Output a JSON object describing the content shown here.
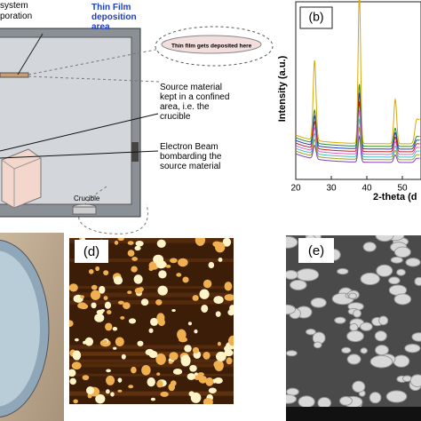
{
  "schematic": {
    "system_label": [
      "system",
      "poration"
    ],
    "deposition_label": [
      "Thin Film",
      "deposition",
      "area"
    ],
    "substrate_label": "Thin film gets deposited here",
    "source_label": [
      "Source material",
      "kept in a confined",
      "area, i.e. the",
      "crucible"
    ],
    "beam_label": [
      "Electron Beam",
      "bombarding the",
      "source material"
    ],
    "crucible_label": "Crucible"
  },
  "xrd": {
    "panel_label": "(b)",
    "ylabel": "Intensity (a.u.)",
    "xlabel": "2-theta (d",
    "xticks": [
      20,
      30,
      40,
      50
    ]
  },
  "afm": {
    "panel_label": "(d)"
  },
  "sem": {
    "panel_label": "(e)"
  }
}
